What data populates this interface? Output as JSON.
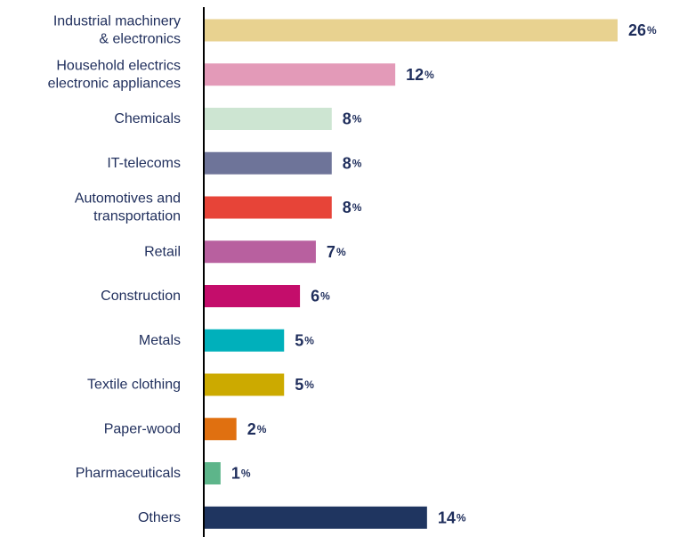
{
  "chart_data": {
    "type": "bar",
    "orientation": "horizontal",
    "title": "",
    "xlabel": "",
    "ylabel": "",
    "unit": "%",
    "xlim": [
      0,
      26
    ],
    "grid": false,
    "categories": [
      [
        "Industrial machinery",
        "& electronics"
      ],
      [
        "Household electrics",
        "electronic appliances"
      ],
      [
        "Chemicals"
      ],
      [
        "IT-telecoms"
      ],
      [
        "Automotives and",
        "transportation"
      ],
      [
        "Retail"
      ],
      [
        "Construction"
      ],
      [
        "Metals"
      ],
      [
        "Textile clothing"
      ],
      [
        "Paper-wood"
      ],
      [
        "Pharmaceuticals"
      ],
      [
        "Others"
      ]
    ],
    "values": [
      26,
      12,
      8,
      8,
      8,
      7,
      6,
      5,
      5,
      2,
      1,
      14
    ],
    "colors": [
      "#e8d290",
      "#e39ab8",
      "#cde5d2",
      "#6e7499",
      "#e74438",
      "#b8609f",
      "#c40d6b",
      "#00b0bb",
      "#ccaa00",
      "#e07010",
      "#5db58a",
      "#1f3560"
    ]
  }
}
